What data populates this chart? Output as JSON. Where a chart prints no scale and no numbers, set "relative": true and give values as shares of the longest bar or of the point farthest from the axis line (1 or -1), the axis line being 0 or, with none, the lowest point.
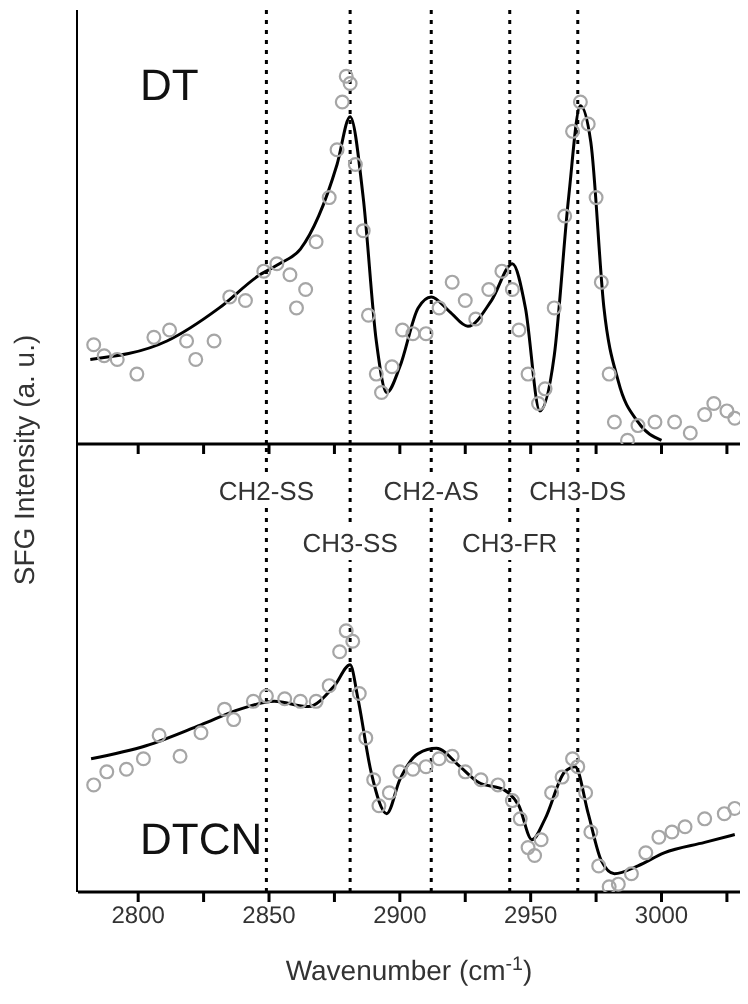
{
  "chart_data": [
    {
      "type": "line",
      "relative": true,
      "ylabel": "SFG Intensity (a. u.)",
      "annotations": [
        "DT"
      ],
      "xlim": [
        2777,
        3030
      ],
      "xticks": [
        2800,
        {
          "value": 2825,
          "label": null
        },
        2850,
        {
          "value": 2875,
          "label": null
        },
        2900,
        {
          "value": 2925,
          "label": null
        },
        2950,
        {
          "value": 2975,
          "label": null
        },
        3000,
        {
          "value": 3025,
          "label": null
        }
      ],
      "tick_labels": false,
      "grid": false,
      "legend": false,
      "ref_lines": [
        {
          "axis": "x",
          "value": 2849,
          "color": "#000000",
          "line_style": "dotted"
        },
        {
          "axis": "x",
          "value": 2881,
          "color": "#000000",
          "line_style": "dotted"
        },
        {
          "axis": "x",
          "value": 2912,
          "color": "#000000",
          "line_style": "dotted"
        },
        {
          "axis": "x",
          "value": 2942,
          "color": "#000000",
          "line_style": "dotted"
        },
        {
          "axis": "x",
          "value": 2968,
          "color": "#000000",
          "line_style": "dotted"
        }
      ],
      "series": [
        {
          "type": "scatter",
          "color": "#a6a6a6",
          "marker": "circle",
          "x": [
            2783,
            2787,
            2792,
            2799.5,
            2806,
            2812,
            2818.5,
            2822,
            2829,
            2835,
            2841,
            2848,
            2853,
            2858,
            2860.5,
            2864,
            2868,
            2873,
            2876,
            2878,
            2879.5,
            2881,
            2883,
            2886,
            2888,
            2891,
            2893,
            2897,
            2901,
            2905,
            2910,
            2915,
            2920,
            2925,
            2929,
            2934,
            2939,
            2943,
            2945.5,
            2949,
            2953,
            2955.5,
            2959,
            2963,
            2966,
            2969,
            2972,
            2975,
            2977,
            2980,
            2982,
            2987,
            2991,
            2997.5,
            3005,
            3011,
            3016.5,
            3020,
            3025,
            3028
          ],
          "values": [
            0.27,
            0.24,
            0.23,
            0.19,
            0.29,
            0.31,
            0.28,
            0.23,
            0.28,
            0.4,
            0.39,
            0.47,
            0.49,
            0.46,
            0.37,
            0.42,
            0.55,
            0.67,
            0.8,
            0.93,
            1,
            0.98,
            0.76,
            0.58,
            0.35,
            0.19,
            0.14,
            0.21,
            0.31,
            0.3,
            0.3,
            0.37,
            0.44,
            0.39,
            0.34,
            0.42,
            0.47,
            0.42,
            0.31,
            0.19,
            0.11,
            0.15,
            0.37,
            0.62,
            0.85,
            0.93,
            0.87,
            0.67,
            0.44,
            0.19,
            0.06,
            0.01,
            0.05,
            0.06,
            0.06,
            0.03,
            0.08,
            0.11,
            0.09,
            0.07
          ]
        },
        {
          "color": "#000000",
          "marker": "none",
          "x": [
            2781.7,
            2811,
            2831,
            2846.5,
            2854,
            2862,
            2869,
            2876,
            2881,
            2886,
            2891,
            2895,
            2900,
            2907,
            2912,
            2919,
            2926,
            2935,
            2943,
            2948,
            2953.5,
            2959,
            2964.5,
            2969,
            2973,
            2978,
            2983.5,
            2991,
            3000
          ],
          "values": [
            0.23,
            0.28,
            0.37,
            0.46,
            0.49,
            0.53,
            0.62,
            0.76,
            0.89,
            0.67,
            0.28,
            0.14,
            0.21,
            0.37,
            0.4,
            0.36,
            0.32,
            0.39,
            0.49,
            0.37,
            0.09,
            0.24,
            0.67,
            0.92,
            0.82,
            0.37,
            0.17,
            0.06,
            0.01
          ]
        }
      ]
    },
    {
      "type": "line",
      "relative": true,
      "xlabel": "Wavenumber (cm$^{-1}$)",
      "annotations": [
        "DTCN"
      ],
      "xlim": [
        2777,
        3030
      ],
      "xticks": [
        2800,
        {
          "value": 2825,
          "label": null
        },
        2850,
        {
          "value": 2875,
          "label": null
        },
        2900,
        {
          "value": 2925,
          "label": null
        },
        2950,
        {
          "value": 2975,
          "label": null
        },
        3000,
        {
          "value": 3025,
          "label": null
        }
      ],
      "tick_labels": "x",
      "grid": false,
      "legend": false,
      "ref_lines": [
        {
          "axis": "x",
          "value": 2849,
          "label": "CH2-SS",
          "color": "#000000",
          "line_style": "dotted"
        },
        {
          "axis": "x",
          "value": 2881,
          "label": "CH3-SS",
          "color": "#000000",
          "line_style": "dotted"
        },
        {
          "axis": "x",
          "value": 2912,
          "label": "CH2-AS",
          "color": "#000000",
          "line_style": "dotted"
        },
        {
          "axis": "x",
          "value": 2942,
          "label": "CH3-FR",
          "color": "#000000",
          "line_style": "dotted"
        },
        {
          "axis": "x",
          "value": 2968,
          "label": "CH3-DS",
          "color": "#000000",
          "line_style": "dotted"
        }
      ],
      "series": [
        {
          "type": "scatter",
          "color": "#a6a6a6",
          "marker": "circle",
          "x": [
            2783,
            2788,
            2795.5,
            2802,
            2808,
            2816,
            2824,
            2833,
            2836.5,
            2844,
            2849,
            2856,
            2862,
            2868,
            2873,
            2877,
            2879.5,
            2882,
            2884.5,
            2887,
            2890,
            2892,
            2896,
            2900,
            2905,
            2910,
            2915,
            2920,
            2925,
            2931,
            2937.5,
            2943,
            2946,
            2949,
            2951.5,
            2954,
            2958,
            2962,
            2966,
            2968,
            2971,
            2973,
            2976,
            2980,
            2983.5,
            2988.5,
            2994,
            2999,
            3004,
            3009,
            3016.5,
            3024,
            3028
          ],
          "values": [
            0.41,
            0.46,
            0.47,
            0.51,
            0.6,
            0.52,
            0.61,
            0.7,
            0.66,
            0.73,
            0.75,
            0.74,
            0.73,
            0.73,
            0.79,
            0.92,
            1,
            0.96,
            0.76,
            0.59,
            0.43,
            0.33,
            0.38,
            0.46,
            0.47,
            0.48,
            0.51,
            0.52,
            0.46,
            0.43,
            0.41,
            0.35,
            0.28,
            0.17,
            0.14,
            0.2,
            0.38,
            0.44,
            0.51,
            0.48,
            0.38,
            0.23,
            0.1,
            0.02,
            0.03,
            0.07,
            0.15,
            0.21,
            0.23,
            0.25,
            0.28,
            0.3,
            0.32
          ]
        },
        {
          "color": "#000000",
          "marker": "none",
          "x": [
            2782,
            2803,
            2824,
            2839,
            2852,
            2865,
            2875,
            2881,
            2884,
            2889,
            2895,
            2900,
            2907,
            2914,
            2923,
            2930,
            2940,
            2945.5,
            2950.5,
            2955.5,
            2963,
            2967,
            2972,
            2977,
            2982,
            2991,
            3001,
            3016.5,
            3028
          ],
          "values": [
            0.51,
            0.56,
            0.64,
            0.7,
            0.73,
            0.71,
            0.79,
            0.87,
            0.74,
            0.46,
            0.3,
            0.43,
            0.53,
            0.55,
            0.48,
            0.42,
            0.39,
            0.33,
            0.2,
            0.28,
            0.46,
            0.48,
            0.3,
            0.12,
            0.07,
            0.1,
            0.15,
            0.19,
            0.22
          ]
        }
      ]
    }
  ]
}
